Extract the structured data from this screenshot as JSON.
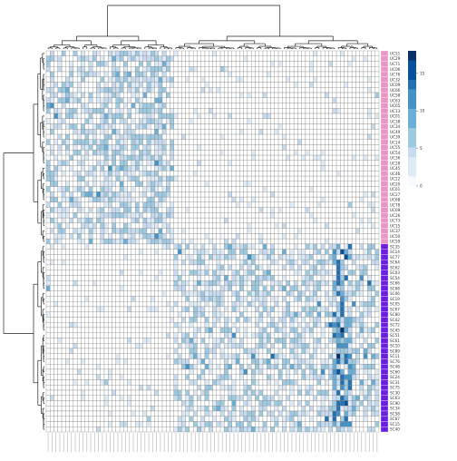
{
  "chart_data": {
    "type": "heatmap",
    "title": "",
    "xlabel": "",
    "ylabel": "",
    "rows": [
      "UC51",
      "UC29",
      "UC71",
      "UC06",
      "UC76",
      "UC32",
      "UC09",
      "UC66",
      "UC58",
      "UC63",
      "UC65",
      "UC13",
      "UC01",
      "UC38",
      "UC34",
      "UC49",
      "UC39",
      "UC14",
      "UC55",
      "UC54",
      "UC36",
      "UC28",
      "UC45",
      "UC46",
      "UC22",
      "UC20",
      "UC61",
      "UC27",
      "UC68",
      "UC78",
      "UC69",
      "UC26",
      "UC73",
      "UC15",
      "UC37",
      "UC50",
      "UC59",
      "SC35",
      "SC14",
      "SC77",
      "SC64",
      "SC62",
      "SC03",
      "SC54",
      "SC66",
      "SC68",
      "SC06",
      "SC19",
      "SC05",
      "SC67",
      "SC80",
      "SC42",
      "SC72",
      "SC45",
      "SC51",
      "SC61",
      "SC10",
      "SC89",
      "SC11",
      "SC76",
      "SC48",
      "SC60",
      "SC24",
      "SC31",
      "SC75",
      "SC30",
      "SC63",
      "SC90",
      "SC34",
      "SC58",
      "SC67",
      "SC15",
      "SC40"
    ],
    "row_groups": [
      {
        "name": "UC",
        "count": 37,
        "color": "#e896c4"
      },
      {
        "name": "SC",
        "count": 36,
        "color": "#6a1fe0"
      }
    ],
    "row_split_after": 37,
    "n_columns": 86,
    "col_split_after": 33,
    "legend": {
      "position": "right",
      "ticks": [
        0,
        5,
        10,
        15
      ],
      "min": 0,
      "max": 18,
      "colors": [
        "#f7fbff",
        "#deebf7",
        "#c6dbef",
        "#9ecae1",
        "#6baed6",
        "#4292c6",
        "#2171b5",
        "#08519c",
        "#08306b"
      ]
    },
    "dendrogram": {
      "rows": true,
      "columns": true
    },
    "cells": "simulated: block structure with UC rows high in left column cluster and SC rows high in right column cluster"
  }
}
